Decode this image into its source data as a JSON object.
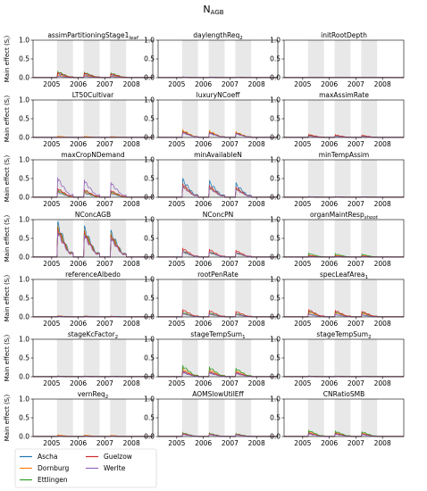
{
  "figure": {
    "title_main": "N",
    "title_sub": "AGB",
    "ylabel": "Main effect (S",
    "ylabel_sub": "i",
    "ylabel_end": ")"
  },
  "chart_data": {
    "type": "line",
    "layout": "7x3 small multiples",
    "x_ticks": [
      "2005",
      "2006",
      "2007",
      "2008"
    ],
    "xlim": [
      2004.3,
      2008.8
    ],
    "shaded_periods": [
      [
        2005.2,
        2005.8
      ],
      [
        2006.2,
        2006.8
      ],
      [
        2007.2,
        2007.8
      ]
    ],
    "ylim": [
      0,
      1
    ],
    "y_ticks": [
      "0.0",
      "0.5",
      "1.0"
    ],
    "grid": false,
    "legend": "bottom-left",
    "colors": {
      "Ascha": "#1f77b4",
      "Dornburg": "#ff7f0e",
      "Ettlingen": "#2ca02c",
      "Guelzow": "#d62728",
      "Werlte": "#9467bd"
    },
    "series_names": [
      "Ascha",
      "Dornburg",
      "Ettlingen",
      "Guelzow",
      "Werlte"
    ],
    "panels": [
      {
        "title": "assimPartitioningStage1",
        "title_sub": "leaf",
        "peaks": [
          0.12,
          0.08,
          0.2,
          0.18,
          0.06
        ]
      },
      {
        "title": "daylengthReq",
        "title_sub": "2",
        "peaks": [
          0.02,
          0.02,
          0.02,
          0.02,
          0.02
        ]
      },
      {
        "title": "initRootDepth",
        "title_sub": "",
        "peaks": [
          0.0,
          0.0,
          0.0,
          0.0,
          0.0
        ]
      },
      {
        "title": "LT50Cultivar",
        "title_sub": "",
        "peaks": [
          0.0,
          0.04,
          0.0,
          0.0,
          0.0
        ]
      },
      {
        "title": "luxuryNCoeff",
        "title_sub": "",
        "peaks": [
          0.15,
          0.22,
          0.2,
          0.2,
          0.18
        ]
      },
      {
        "title": "maxAssimRate",
        "title_sub": "",
        "peaks": [
          0.05,
          0.06,
          0.08,
          0.1,
          0.05
        ]
      },
      {
        "title": "maxCropNDemand",
        "title_sub": "",
        "peaks": [
          0.15,
          0.2,
          0.25,
          0.3,
          0.7
        ]
      },
      {
        "title": "minAvailableN",
        "title_sub": "",
        "peaks": [
          0.5,
          0.35,
          0.4,
          0.45,
          0.4
        ]
      },
      {
        "title": "minTempAssim",
        "title_sub": "",
        "peaks": [
          0.02,
          0.02,
          0.02,
          0.02,
          0.02
        ]
      },
      {
        "title": "NConcAGB",
        "title_sub": "",
        "peaks": [
          0.95,
          0.9,
          0.92,
          0.95,
          0.9
        ]
      },
      {
        "title": "NConcPN",
        "title_sub": "",
        "peaks": [
          0.15,
          0.18,
          0.2,
          0.3,
          0.22
        ]
      },
      {
        "title": "organMaintResp",
        "title_sub": "shoot",
        "peaks": [
          0.02,
          0.06,
          0.12,
          0.05,
          0.03
        ]
      },
      {
        "title": "referenceAlbedo",
        "title_sub": "",
        "peaks": [
          0.02,
          0.03,
          0.03,
          0.03,
          0.02
        ]
      },
      {
        "title": "rootPenRate",
        "title_sub": "",
        "peaks": [
          0.1,
          0.12,
          0.15,
          0.25,
          0.12
        ]
      },
      {
        "title": "specLeafArea",
        "title_sub": "1",
        "peaks": [
          0.08,
          0.15,
          0.2,
          0.25,
          0.1
        ]
      },
      {
        "title": "stageKcFactor",
        "title_sub": "2",
        "peaks": [
          0.02,
          0.02,
          0.02,
          0.02,
          0.02
        ]
      },
      {
        "title": "stageTempSum",
        "title_sub": "1",
        "peaks": [
          0.15,
          0.25,
          0.35,
          0.2,
          0.15
        ]
      },
      {
        "title": "stageTempSum",
        "title_sub": "2",
        "peaks": [
          0.02,
          0.02,
          0.02,
          0.02,
          0.02
        ]
      },
      {
        "title": "vernReq",
        "title_sub": "2",
        "peaks": [
          0.02,
          0.05,
          0.02,
          0.02,
          0.02
        ]
      },
      {
        "title": "AOMSlowUtilEff",
        "title_sub": "",
        "peaks": [
          0.08,
          0.1,
          0.12,
          0.1,
          0.08
        ]
      },
      {
        "title": "CNRatioSMB",
        "title_sub": "",
        "peaks": [
          0.1,
          0.15,
          0.2,
          0.12,
          0.1
        ]
      }
    ]
  }
}
